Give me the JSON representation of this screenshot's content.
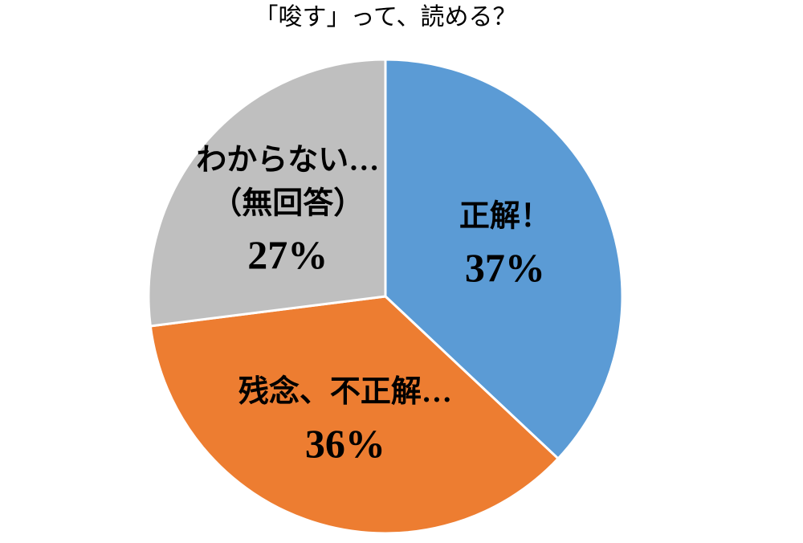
{
  "chart_data": {
    "type": "pie",
    "title": "「唆す」って、読める？",
    "categories": [
      [
        "正解！"
      ],
      [
        "残念、不正解…"
      ],
      [
        "わからない…",
        "（無回答）"
      ]
    ],
    "values": [
      37,
      36,
      27
    ],
    "value_labels": [
      "37%",
      "36%",
      "27%"
    ],
    "colors": [
      "#5b9bd5",
      "#ed7d31",
      "#bfbfbf"
    ]
  }
}
